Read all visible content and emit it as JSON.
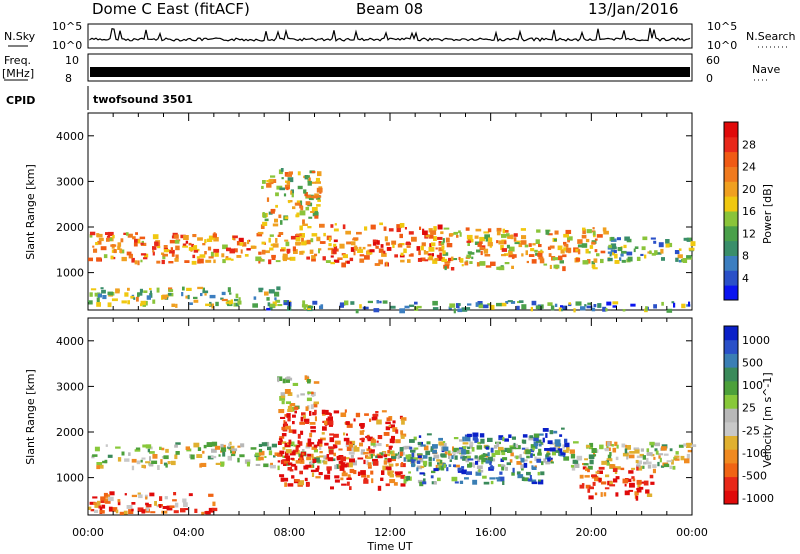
{
  "header": {
    "site": "Dome C East (fitACF)",
    "beam": "Beam 08",
    "date": "13/Jan/2016"
  },
  "panels": {
    "nsky": {
      "label": "N.Sky",
      "top_tick": "10^5",
      "bottom_tick": "10^0"
    },
    "nsearch": {
      "label": "N.Search",
      "top_tick": "10^5",
      "bottom_tick": "10^0"
    },
    "freq": {
      "label_line1": "Freq.",
      "label_line2": "[MHz]",
      "top_tick": "10",
      "bottom_tick": "8"
    },
    "nave": {
      "label": "Nave",
      "top_tick": "60",
      "bottom_tick": "0"
    },
    "cpid": {
      "label": "CPID",
      "program": "twofsound 3501"
    }
  },
  "colors": {
    "power_scale": [
      "#0a14f0",
      "#2a50c8",
      "#3c7ec0",
      "#3a8e6a",
      "#4aa04a",
      "#8ac43a",
      "#f0c810",
      "#f0a020",
      "#f07a1e",
      "#f05a14",
      "#e8281a",
      "#e00a0a"
    ],
    "velocity_scale": [
      "#0a20c8",
      "#2a50c8",
      "#3a7eb4",
      "#3a8a5a",
      "#4ca03a",
      "#88c83a",
      "#b8b8b8",
      "#c8c8c8",
      "#e0b030",
      "#f08a20",
      "#f06414",
      "#e82818",
      "#e00a0a"
    ]
  },
  "chart_data": [
    {
      "type": "heatmap",
      "name": "power",
      "ylabel": "Slant Range [km]",
      "colorbar_label": "Power [dB]",
      "colorbar_ticks": [
        "4",
        "8",
        "12",
        "16",
        "20",
        "24",
        "28"
      ],
      "y_ticks": [
        "1000",
        "2000",
        "3000",
        "4000"
      ],
      "ylim": [
        180,
        4500
      ],
      "xlim": [
        0,
        24
      ],
      "x_ticks": [
        "00:00",
        "04:00",
        "08:00",
        "12:00",
        "16:00",
        "20:00",
        "00:00"
      ],
      "bands": [
        {
          "x0": 0.0,
          "x1": 9.5,
          "y0": 1250,
          "y1": 1900,
          "level": 0.7
        },
        {
          "x0": 9.5,
          "x1": 14.0,
          "y0": 1200,
          "y1": 2100,
          "level": 0.75
        },
        {
          "x0": 14.0,
          "x1": 20.5,
          "y0": 1100,
          "y1": 2000,
          "level": 0.6
        },
        {
          "x0": 20.5,
          "x1": 24.0,
          "y0": 1250,
          "y1": 1800,
          "level": 0.35
        },
        {
          "x0": 6.8,
          "x1": 9.2,
          "y0": 2000,
          "y1": 3300,
          "level": 0.55
        },
        {
          "x0": 0.0,
          "x1": 7.5,
          "y0": 300,
          "y1": 700,
          "level": 0.45
        },
        {
          "x0": 7.0,
          "x1": 24.0,
          "y0": 200,
          "y1": 400,
          "level": 0.3
        }
      ]
    },
    {
      "type": "heatmap",
      "name": "velocity",
      "ylabel": "Slant Range [km]",
      "xlabel": "Time UT",
      "colorbar_label": "Velocity [m s^-1]",
      "colorbar_ticks": [
        "1000",
        "500",
        "100",
        "25",
        "-25",
        "-100",
        "-500",
        "-1000"
      ],
      "y_ticks": [
        "1000",
        "2000",
        "3000",
        "4000"
      ],
      "ylim": [
        180,
        4500
      ],
      "xlim": [
        0,
        24
      ],
      "x_ticks": [
        "00:00",
        "04:00",
        "08:00",
        "12:00",
        "16:00",
        "20:00",
        "00:00"
      ],
      "bands": [
        {
          "x0": 0.0,
          "x1": 24.0,
          "y0": 1250,
          "y1": 1800,
          "level": 0.5
        },
        {
          "x0": 7.5,
          "x1": 12.5,
          "y0": 800,
          "y1": 2500,
          "level": 0.9
        },
        {
          "x0": 12.5,
          "x1": 18.0,
          "y0": 900,
          "y1": 2000,
          "level": 0.25
        },
        {
          "x0": 18.0,
          "x1": 19.0,
          "y0": 1400,
          "y1": 2100,
          "level": 0.05
        },
        {
          "x0": 19.5,
          "x1": 22.5,
          "y0": 600,
          "y1": 1300,
          "level": 0.85
        },
        {
          "x0": 0.0,
          "x1": 5.0,
          "y0": 250,
          "y1": 700,
          "level": 0.8
        },
        {
          "x0": 7.5,
          "x1": 9.0,
          "y0": 2500,
          "y1": 3300,
          "level": 0.55
        }
      ]
    }
  ]
}
